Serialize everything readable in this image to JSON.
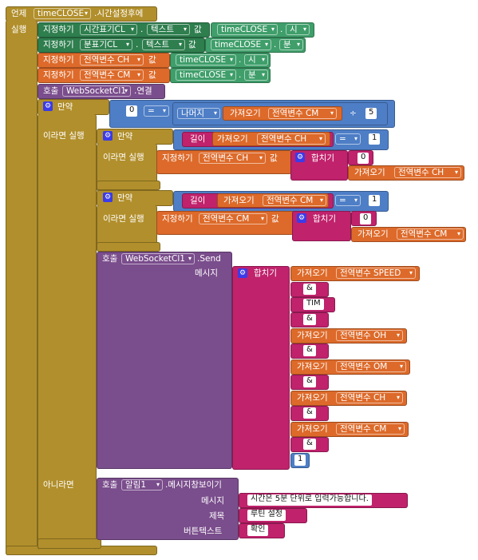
{
  "event": {
    "when": "언제",
    "component": "timeCLOSE",
    "event_name": ".시간설정후에",
    "do": "실행"
  },
  "labels": {
    "set": "지정하기",
    "dot": ".",
    "value": "값",
    "call": "호출",
    "if": "만약",
    "then": "이라면 실행",
    "else": "아니라면",
    "get": "가져오기",
    "join": "합치기",
    "length": "길이",
    "remainder": "나머지",
    "message": "메시지",
    "title": "제목",
    "button_text": "버튼텍스트"
  },
  "set1": {
    "target": "시간표기CL",
    "prop": "텍스트",
    "src": "timeCLOSE",
    "src_prop": "시"
  },
  "set2": {
    "target": "분표기CL",
    "prop": "텍스트",
    "src": "timeCLOSE",
    "src_prop": "분"
  },
  "set3": {
    "var": "전역변수 CH",
    "src": "timeCLOSE",
    "src_prop": "시"
  },
  "set4": {
    "var": "전역변수 CM",
    "src": "timeCLOSE",
    "src_prop": "분"
  },
  "call1": {
    "component": "WebSocketCl1",
    "method": ".연결"
  },
  "if_outer": {
    "lhs": "0",
    "op": "=",
    "var": "전역변수 CM",
    "op2": "÷",
    "divisor": "5"
  },
  "if1": {
    "var": "전역변수 CH",
    "op": "=",
    "num": "1",
    "str": "0",
    "join_var": "전역변수 CH",
    "set_var": "전역변수 CH"
  },
  "if2": {
    "var": "전역변수 CM",
    "op": "=",
    "num": "1",
    "str": "0",
    "join_var": "전역변수 CM",
    "set_var": "전역변수 CM"
  },
  "send": {
    "component": "WebSocketCl1",
    "method": ".Send",
    "items": [
      "전역변수 SPEED",
      "&",
      "TIM",
      "&",
      "전역변수 OH",
      "&",
      "전역변수 OM",
      "&",
      "전역변수 CH",
      "&",
      "전역변수 CM",
      "&"
    ],
    "last": "1"
  },
  "notifier": {
    "component": "알림1",
    "method": ".메시지창보이기",
    "message": "시간은 5분 단위로 입력가능합니다.",
    "title": "루틴 설정",
    "button": "확인"
  }
}
